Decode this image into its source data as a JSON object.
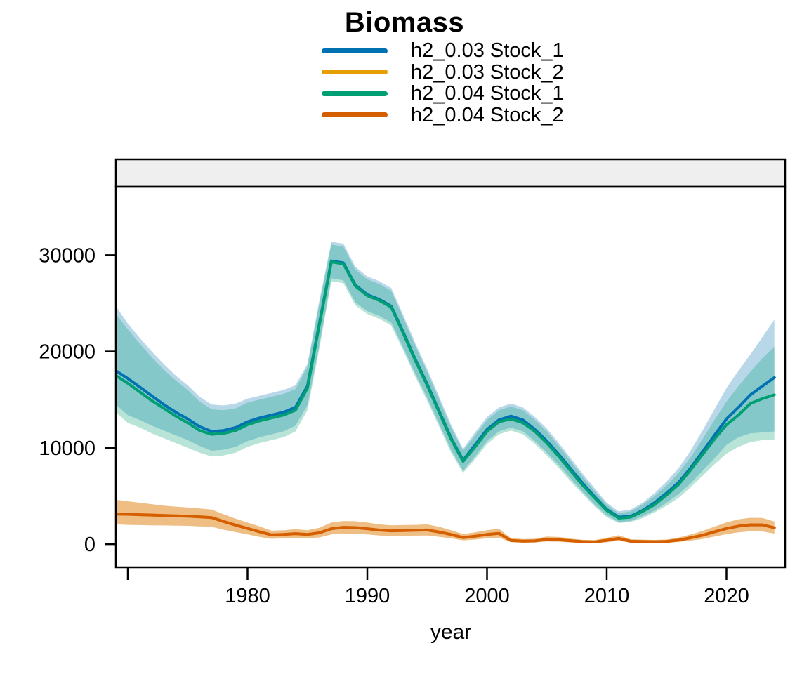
{
  "chart_data": {
    "type": "line",
    "title": "Biomass",
    "xlabel": "year",
    "ylabel": "",
    "x_range": [
      1969,
      2024.9
    ],
    "y_range": [
      -2400,
      37100
    ],
    "x_axis": {
      "label": "year",
      "ticks": [
        {
          "value": 1970,
          "label": ""
        },
        {
          "value": 1980,
          "label": "1980"
        },
        {
          "value": 1990,
          "label": "1990"
        },
        {
          "value": 2000,
          "label": "2000"
        },
        {
          "value": 2010,
          "label": "2010"
        },
        {
          "value": 2020,
          "label": "2020"
        }
      ]
    },
    "y_axis": {
      "label": "",
      "ticks": [
        {
          "value": 0,
          "label": "0"
        },
        {
          "value": 10000,
          "label": "10000"
        },
        {
          "value": 20000,
          "label": "20000"
        },
        {
          "value": 30000,
          "label": "30000"
        }
      ]
    },
    "layout": {
      "grid": false,
      "legend_position": "top-center",
      "strip_fill": "#EFEFEF",
      "background": "#FFFFFF",
      "ribbon_opacity": 0.28
    },
    "years": [
      1969,
      1970,
      1971,
      1972,
      1973,
      1974,
      1975,
      1976,
      1977,
      1978,
      1979,
      1980,
      1981,
      1982,
      1983,
      1984,
      1985,
      1986,
      1987,
      1988,
      1989,
      1990,
      1991,
      1992,
      1993,
      1994,
      1995,
      1996,
      1997,
      1998,
      1999,
      2000,
      2001,
      2002,
      2003,
      2004,
      2005,
      2006,
      2007,
      2008,
      2009,
      2010,
      2011,
      2012,
      2013,
      2014,
      2015,
      2016,
      2017,
      2018,
      2019,
      2020,
      2021,
      2022,
      2023,
      2024
    ],
    "series": [
      {
        "name": "h2_0.03 Stock_1",
        "color": "#0072B2",
        "mean": [
          18000,
          17200,
          16300,
          15400,
          14500,
          13700,
          13000,
          12200,
          11700,
          11800,
          12100,
          12700,
          13100,
          13400,
          13700,
          14200,
          16400,
          22900,
          29400,
          29200,
          26900,
          25900,
          25400,
          24700,
          22000,
          19200,
          16600,
          13800,
          11000,
          8700,
          10300,
          11900,
          12900,
          13300,
          12900,
          11900,
          10700,
          9300,
          7800,
          6300,
          4900,
          3600,
          2800,
          2900,
          3500,
          4300,
          5300,
          6400,
          7900,
          9600,
          11300,
          13000,
          14200,
          15500,
          16400,
          17300
        ],
        "lo": [
          14500,
          13400,
          12900,
          12300,
          11800,
          11300,
          10800,
          10200,
          9700,
          9800,
          10100,
          10700,
          11100,
          11400,
          11700,
          12300,
          14400,
          20700,
          27600,
          27400,
          25100,
          24200,
          23700,
          23000,
          20400,
          17700,
          15200,
          12500,
          9800,
          7600,
          9100,
          10700,
          11700,
          12100,
          11700,
          10700,
          9500,
          8200,
          6800,
          5400,
          4100,
          3000,
          2300,
          2400,
          2900,
          3500,
          4300,
          5200,
          6300,
          7600,
          8900,
          10300,
          11100,
          11500,
          11600,
          11700
        ],
        "hi": [
          24700,
          22900,
          21400,
          20000,
          18700,
          17500,
          16500,
          15300,
          14500,
          14400,
          14600,
          15100,
          15400,
          15700,
          16000,
          16500,
          18700,
          25300,
          31400,
          31200,
          28800,
          27800,
          27300,
          26600,
          23800,
          20900,
          18200,
          15300,
          12400,
          9900,
          11600,
          13200,
          14200,
          14600,
          14200,
          13200,
          12000,
          10500,
          8900,
          7300,
          5800,
          4300,
          3400,
          3600,
          4300,
          5300,
          6500,
          7900,
          9700,
          11800,
          14000,
          16200,
          18000,
          19700,
          21500,
          23300
        ]
      },
      {
        "name": "h2_0.03 Stock_2",
        "color": "#E69F00",
        "mean": [
          3120,
          3100,
          3060,
          3020,
          2980,
          2940,
          2900,
          2840,
          2760,
          2350,
          1980,
          1630,
          1280,
          960,
          1010,
          1090,
          1000,
          1180,
          1600,
          1750,
          1720,
          1600,
          1460,
          1380,
          1410,
          1440,
          1470,
          1260,
          1000,
          680,
          820,
          1000,
          1120,
          380,
          320,
          340,
          500,
          460,
          350,
          260,
          230,
          400,
          600,
          300,
          270,
          250,
          280,
          420,
          660,
          920,
          1280,
          1620,
          1870,
          2010,
          2000,
          1700
        ],
        "lo": [
          2060,
          2000,
          1980,
          1960,
          1940,
          1920,
          1900,
          1850,
          1800,
          1500,
          1250,
          1000,
          750,
          550,
          600,
          650,
          600,
          700,
          1000,
          1100,
          1080,
          1000,
          900,
          850,
          870,
          890,
          900,
          760,
          600,
          400,
          480,
          600,
          680,
          200,
          160,
          170,
          270,
          250,
          180,
          130,
          110,
          210,
          340,
          150,
          140,
          130,
          140,
          220,
          370,
          540,
          790,
          1030,
          1220,
          1330,
          1320,
          1100
        ],
        "hi": [
          4600,
          4450,
          4300,
          4150,
          4000,
          3900,
          3800,
          3700,
          3600,
          3100,
          2650,
          2250,
          1850,
          1400,
          1450,
          1550,
          1450,
          1700,
          2250,
          2400,
          2380,
          2250,
          2050,
          1950,
          1980,
          2000,
          2050,
          1800,
          1450,
          1050,
          1220,
          1450,
          1600,
          620,
          540,
          560,
          790,
          740,
          580,
          450,
          410,
          650,
          920,
          510,
          470,
          440,
          480,
          680,
          1000,
          1350,
          1820,
          2260,
          2570,
          2740,
          2720,
          2350
        ]
      },
      {
        "name": "h2_0.04 Stock_1",
        "color": "#009E73",
        "mean": [
          17500,
          16700,
          15800,
          14900,
          14100,
          13300,
          12600,
          11800,
          11400,
          11500,
          11800,
          12400,
          12800,
          13100,
          13400,
          13900,
          16200,
          22800,
          29300,
          29100,
          26800,
          25800,
          25300,
          24600,
          21900,
          19100,
          16500,
          13700,
          10900,
          8600,
          10100,
          11700,
          12700,
          13000,
          12600,
          11700,
          10500,
          9100,
          7600,
          6100,
          4800,
          3500,
          2700,
          2800,
          3400,
          4100,
          5100,
          6200,
          7700,
          9300,
          10900,
          12400,
          13400,
          14600,
          15100,
          15500
        ],
        "lo": [
          13700,
          12600,
          12100,
          11500,
          11000,
          10500,
          10000,
          9500,
          9100,
          9200,
          9500,
          10100,
          10500,
          10800,
          11100,
          11700,
          13900,
          20300,
          27300,
          27100,
          24800,
          23900,
          23400,
          22700,
          20100,
          17400,
          14900,
          12200,
          9500,
          7400,
          8800,
          10400,
          11400,
          11800,
          11400,
          10400,
          9200,
          7900,
          6500,
          5200,
          3900,
          2800,
          2200,
          2300,
          2700,
          3300,
          4000,
          4800,
          5900,
          7100,
          8300,
          9400,
          10100,
          10600,
          10800,
          10800
        ],
        "hi": [
          23900,
          22300,
          20800,
          19400,
          18100,
          17000,
          16000,
          14800,
          14000,
          13900,
          14100,
          14700,
          15000,
          15300,
          15600,
          16100,
          18400,
          25000,
          31100,
          30900,
          28500,
          27500,
          27000,
          26300,
          23500,
          20600,
          17900,
          15000,
          12100,
          9700,
          11300,
          12900,
          13900,
          14300,
          13900,
          12900,
          11700,
          10200,
          8600,
          7000,
          5500,
          4100,
          3200,
          3400,
          4100,
          5000,
          6100,
          7400,
          9000,
          10900,
          12900,
          14800,
          16400,
          17900,
          19300,
          20500
        ]
      },
      {
        "name": "h2_0.04 Stock_2",
        "color": "#D55E00",
        "mean": [
          3120,
          3100,
          3060,
          3020,
          2980,
          2940,
          2900,
          2840,
          2760,
          2350,
          1980,
          1630,
          1280,
          960,
          1010,
          1090,
          1000,
          1180,
          1600,
          1750,
          1720,
          1600,
          1460,
          1380,
          1410,
          1440,
          1470,
          1260,
          1000,
          680,
          820,
          1000,
          1120,
          380,
          320,
          340,
          500,
          460,
          350,
          260,
          230,
          400,
          600,
          300,
          270,
          250,
          280,
          420,
          660,
          920,
          1280,
          1620,
          1870,
          2010,
          2000,
          1700
        ],
        "lo": [
          2060,
          2000,
          1980,
          1960,
          1940,
          1920,
          1900,
          1850,
          1800,
          1500,
          1250,
          1000,
          750,
          550,
          600,
          650,
          600,
          700,
          1000,
          1100,
          1080,
          1000,
          900,
          850,
          870,
          890,
          900,
          760,
          600,
          400,
          480,
          600,
          680,
          200,
          160,
          170,
          270,
          250,
          180,
          130,
          110,
          210,
          340,
          150,
          140,
          130,
          140,
          220,
          370,
          540,
          790,
          1030,
          1220,
          1330,
          1320,
          1100
        ],
        "hi": [
          4600,
          4450,
          4300,
          4150,
          4000,
          3900,
          3800,
          3700,
          3600,
          3100,
          2650,
          2250,
          1850,
          1400,
          1450,
          1550,
          1450,
          1700,
          2250,
          2400,
          2380,
          2250,
          2050,
          1950,
          1980,
          2000,
          2050,
          1800,
          1450,
          1050,
          1220,
          1450,
          1600,
          620,
          540,
          560,
          790,
          740,
          580,
          450,
          410,
          650,
          920,
          510,
          470,
          440,
          480,
          680,
          1000,
          1350,
          1820,
          2260,
          2570,
          2740,
          2720,
          2350
        ]
      }
    ]
  }
}
